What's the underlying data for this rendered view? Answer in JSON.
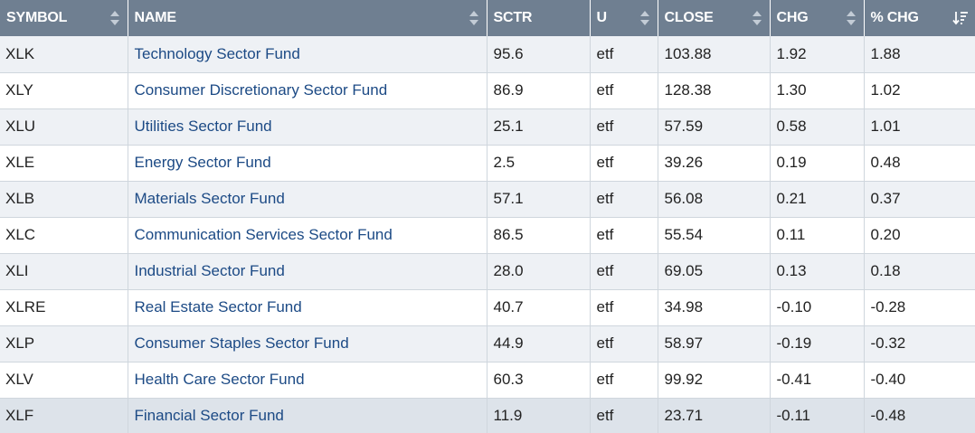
{
  "columns": [
    {
      "label": "SYMBOL",
      "sort": "both"
    },
    {
      "label": "NAME",
      "sort": "both"
    },
    {
      "label": "SCTR",
      "sort": "none"
    },
    {
      "label": "U",
      "sort": "both"
    },
    {
      "label": "CLOSE",
      "sort": "both"
    },
    {
      "label": "CHG",
      "sort": "both"
    },
    {
      "label": "% CHG",
      "sort": "desc"
    }
  ],
  "colors": {
    "header_bg": "#6f7f91",
    "name_link": "#1c4a85",
    "row_alt": "#eef1f5",
    "row_highlight": "#dde3ea"
  },
  "rows": [
    {
      "symbol": "XLK",
      "name": "Technology Sector Fund",
      "sctr": "95.6",
      "u": "etf",
      "close": "103.88",
      "chg": "1.92",
      "pct_chg": "1.88"
    },
    {
      "symbol": "XLY",
      "name": "Consumer Discretionary Sector Fund",
      "sctr": "86.9",
      "u": "etf",
      "close": "128.38",
      "chg": "1.30",
      "pct_chg": "1.02"
    },
    {
      "symbol": "XLU",
      "name": "Utilities Sector Fund",
      "sctr": "25.1",
      "u": "etf",
      "close": "57.59",
      "chg": "0.58",
      "pct_chg": "1.01"
    },
    {
      "symbol": "XLE",
      "name": "Energy Sector Fund",
      "sctr": "2.5",
      "u": "etf",
      "close": "39.26",
      "chg": "0.19",
      "pct_chg": "0.48"
    },
    {
      "symbol": "XLB",
      "name": "Materials Sector Fund",
      "sctr": "57.1",
      "u": "etf",
      "close": "56.08",
      "chg": "0.21",
      "pct_chg": "0.37"
    },
    {
      "symbol": "XLC",
      "name": "Communication Services Sector Fund",
      "sctr": "86.5",
      "u": "etf",
      "close": "55.54",
      "chg": "0.11",
      "pct_chg": "0.20"
    },
    {
      "symbol": "XLI",
      "name": "Industrial Sector Fund",
      "sctr": "28.0",
      "u": "etf",
      "close": "69.05",
      "chg": "0.13",
      "pct_chg": "0.18"
    },
    {
      "symbol": "XLRE",
      "name": "Real Estate Sector Fund",
      "sctr": "40.7",
      "u": "etf",
      "close": "34.98",
      "chg": "-0.10",
      "pct_chg": "-0.28"
    },
    {
      "symbol": "XLP",
      "name": "Consumer Staples Sector Fund",
      "sctr": "44.9",
      "u": "etf",
      "close": "58.97",
      "chg": "-0.19",
      "pct_chg": "-0.32"
    },
    {
      "symbol": "XLV",
      "name": "Health Care Sector Fund",
      "sctr": "60.3",
      "u": "etf",
      "close": "99.92",
      "chg": "-0.41",
      "pct_chg": "-0.40"
    },
    {
      "symbol": "XLF",
      "name": "Financial Sector Fund",
      "sctr": "11.9",
      "u": "etf",
      "close": "23.71",
      "chg": "-0.11",
      "pct_chg": "-0.48"
    }
  ]
}
